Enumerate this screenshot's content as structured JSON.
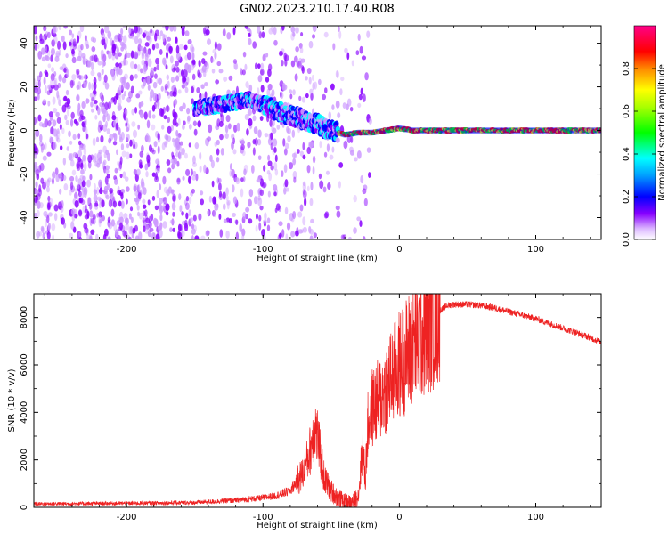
{
  "title": "GN02.2023.210.17.40.R08",
  "chart_data": [
    {
      "type": "heatmap",
      "xlabel": "Height of straight line (km)",
      "ylabel": "Frequency (Hz)",
      "xlim": [
        -268,
        148
      ],
      "ylim": [
        -50,
        48
      ],
      "x_ticks": [
        -200,
        -100,
        0,
        100
      ],
      "y_ticks": [
        -40,
        -20,
        0,
        20,
        40
      ],
      "grid": false,
      "ridge": {
        "x": [
          -150,
          -130,
          -110,
          -100,
          -90,
          -80,
          -70,
          -60,
          -55,
          -50,
          -45,
          -40,
          -30,
          -20,
          -10,
          0,
          10,
          50,
          100,
          148
        ],
        "y": [
          10,
          12,
          14,
          12,
          9,
          7,
          5,
          3,
          1,
          0,
          -1,
          -2,
          -1,
          -1,
          0,
          1,
          0,
          0,
          0,
          0
        ]
      },
      "colorbar": {
        "label": "Normalized spectral amplitude",
        "range": [
          0,
          1
        ],
        "ticks": [
          0.0,
          0.2,
          0.4,
          0.6,
          0.8
        ],
        "tick_labels": [
          "0.0",
          "0.2",
          "0.4",
          "0.6",
          "0.8"
        ]
      },
      "colormap": [
        "#ffffff",
        "#cc99ff",
        "#8800ff",
        "#0000ff",
        "#00ffff",
        "#00ff00",
        "#ffff00",
        "#ff0000",
        "#ff00aa"
      ]
    },
    {
      "type": "line",
      "xlabel": "Height of straight line (km)",
      "ylabel": "SNR (10 * v/v)",
      "xlim": [
        -268,
        148
      ],
      "ylim": [
        0,
        9000
      ],
      "x_ticks": [
        -200,
        -100,
        0,
        100
      ],
      "y_ticks": [
        0,
        2000,
        4000,
        6000,
        8000
      ],
      "grid": false,
      "series": [
        {
          "color": "#ee2222",
          "x": [
            -268,
            -250,
            -200,
            -150,
            -120,
            -100,
            -90,
            -80,
            -70,
            -65,
            -62,
            -60,
            -58,
            -55,
            -50,
            -45,
            -40,
            -35,
            -30,
            -27,
            -25,
            -23,
            -20,
            -15,
            -10,
            -5,
            0,
            5,
            10,
            15,
            20,
            25,
            30,
            35,
            40,
            50,
            60,
            70,
            80,
            90,
            100,
            110,
            120,
            130,
            140,
            148
          ],
          "y": [
            150,
            150,
            170,
            200,
            300,
            400,
            500,
            700,
            1500,
            2500,
            3500,
            3000,
            2200,
            1200,
            700,
            400,
            250,
            200,
            500,
            2500,
            1200,
            3500,
            4200,
            4500,
            5000,
            5500,
            6000,
            6400,
            6900,
            7200,
            7500,
            7900,
            8300,
            8500,
            8550,
            8550,
            8500,
            8400,
            8250,
            8100,
            7950,
            7750,
            7550,
            7350,
            7150,
            6950
          ]
        }
      ]
    }
  ]
}
